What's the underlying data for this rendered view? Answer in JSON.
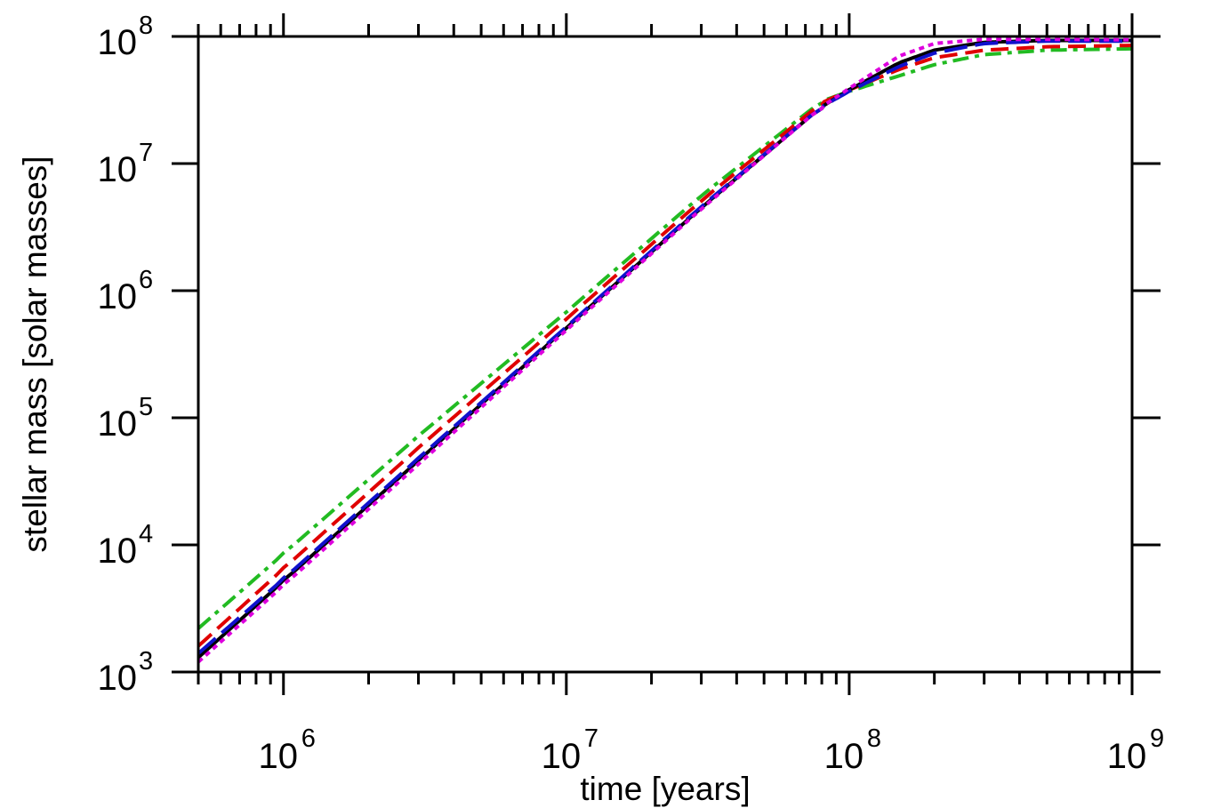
{
  "chart_data": {
    "type": "line",
    "title": "",
    "xlabel": "time [years]",
    "ylabel": "stellar mass [solar masses]",
    "x_scale": "log",
    "y_scale": "log",
    "xlim": [
      500000,
      1000000000
    ],
    "ylim": [
      1000,
      100000000
    ],
    "x_major_ticks": [
      {
        "value": 1000000,
        "base": "10",
        "exp": "6"
      },
      {
        "value": 10000000,
        "base": "10",
        "exp": "7"
      },
      {
        "value": 100000000,
        "base": "10",
        "exp": "8"
      },
      {
        "value": 1000000000,
        "base": "10",
        "exp": "9"
      }
    ],
    "y_major_ticks": [
      {
        "value": 1000,
        "base": "10",
        "exp": "3"
      },
      {
        "value": 10000,
        "base": "10",
        "exp": "4"
      },
      {
        "value": 100000,
        "base": "10",
        "exp": "5"
      },
      {
        "value": 1000000,
        "base": "10",
        "exp": "6"
      },
      {
        "value": 10000000,
        "base": "10",
        "exp": "7"
      },
      {
        "value": 100000000,
        "base": "10",
        "exp": "8"
      }
    ],
    "grid": false,
    "legend": "none",
    "series": [
      {
        "color": "#000000",
        "dash": "solid",
        "x": [
          500000,
          1000000,
          3000000,
          10000000,
          30000000,
          80000000,
          100000000,
          150000000,
          200000000,
          300000000,
          500000000,
          1000000000
        ],
        "y": [
          1300,
          5200,
          46000,
          510000,
          4500000,
          28000000,
          38000000,
          62000000,
          78000000,
          90000000,
          93000000,
          93000000
        ]
      },
      {
        "color": "#1010cc",
        "dash": "long-dash",
        "x": [
          500000,
          1000000,
          3000000,
          10000000,
          30000000,
          80000000,
          100000000,
          150000000,
          200000000,
          300000000,
          500000000,
          1000000000
        ],
        "y": [
          1400,
          5400,
          48000,
          520000,
          4600000,
          28000000,
          37000000,
          58000000,
          74000000,
          88000000,
          92000000,
          92000000
        ]
      },
      {
        "color": "#dd00dd",
        "dash": "dotted",
        "x": [
          500000,
          1000000,
          3000000,
          10000000,
          30000000,
          80000000,
          100000000,
          150000000,
          200000000,
          300000000,
          500000000,
          1000000000
        ],
        "y": [
          1200,
          4800,
          43000,
          490000,
          4400000,
          28000000,
          39000000,
          70000000,
          88000000,
          95000000,
          95000000,
          94000000
        ]
      },
      {
        "color": "#e00000",
        "dash": "dash",
        "x": [
          500000,
          1000000,
          3000000,
          10000000,
          30000000,
          80000000,
          100000000,
          150000000,
          200000000,
          300000000,
          500000000,
          1000000000
        ],
        "y": [
          1600,
          6500,
          58000,
          600000,
          5100000,
          30000000,
          38000000,
          55000000,
          68000000,
          78000000,
          83000000,
          85000000
        ]
      },
      {
        "color": "#22bb22",
        "dash": "dash-dot",
        "x": [
          500000,
          1000000,
          3000000,
          10000000,
          30000000,
          80000000,
          100000000,
          150000000,
          200000000,
          300000000,
          500000000,
          1000000000
        ],
        "y": [
          2200,
          8500,
          72000,
          680000,
          5600000,
          31000000,
          37000000,
          49000000,
          60000000,
          72000000,
          78000000,
          80000000
        ]
      }
    ]
  }
}
